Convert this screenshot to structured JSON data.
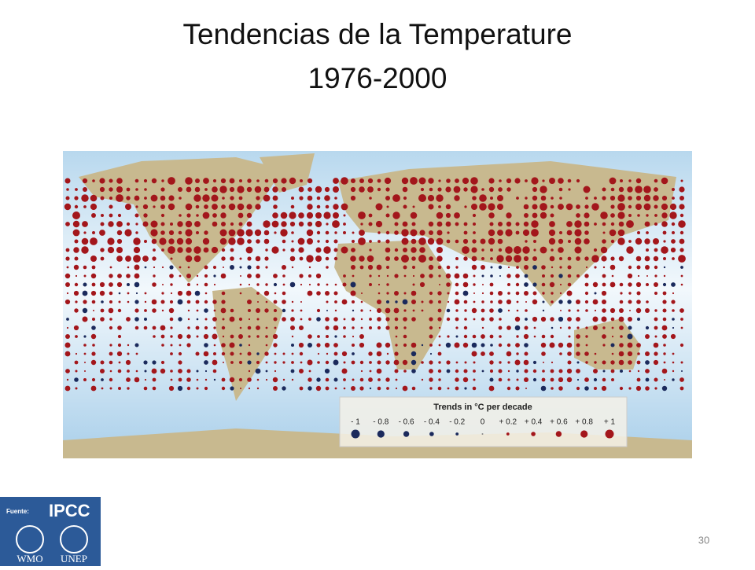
{
  "header": {
    "title_lines": [
      "Tendencias de la Temperature",
      "1976-2000"
    ]
  },
  "map": {
    "legend": {
      "title": "Trends in °C per decade",
      "items": [
        {
          "label": "- 1",
          "color": "#1b2a5c"
        },
        {
          "label": "- 0.8",
          "color": "#1b2a5c"
        },
        {
          "label": "- 0.6",
          "color": "#1b2a5c"
        },
        {
          "label": "- 0.4",
          "color": "#1b2a5c"
        },
        {
          "label": "- 0.2",
          "color": "#1b2a5c"
        },
        {
          "label": "0",
          "color": "#888888"
        },
        {
          "label": "+ 0.2",
          "color": "#a3161b"
        },
        {
          "label": "+ 0.4",
          "color": "#a3161b"
        },
        {
          "label": "+ 0.6",
          "color": "#a3161b"
        },
        {
          "label": "+ 0.8",
          "color": "#a3161b"
        },
        {
          "label": "+ 1",
          "color": "#a3161b"
        }
      ]
    }
  },
  "source": {
    "label": "Fuente:",
    "logos": [
      "IPCC",
      "WMO",
      "UNEP"
    ]
  },
  "slide_number": "30"
}
